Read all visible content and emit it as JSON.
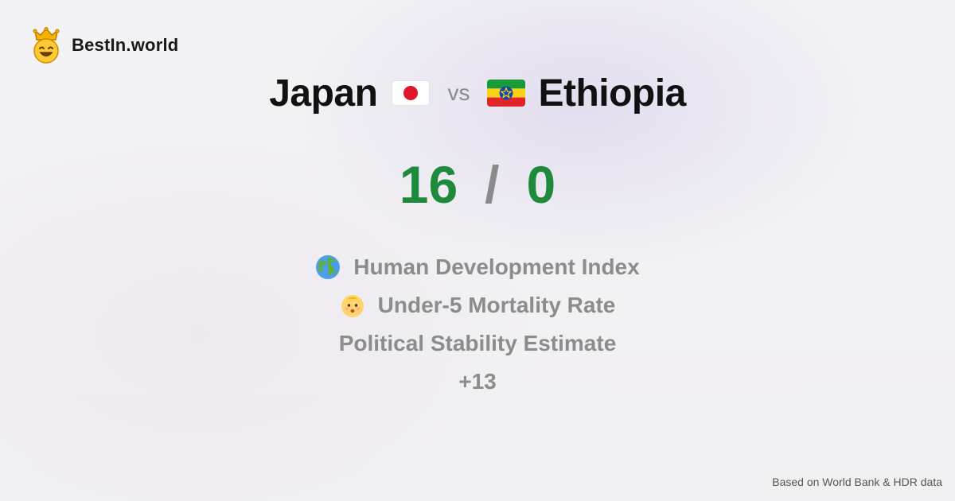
{
  "brand": {
    "name": "BestIn.world",
    "logo_icon": "crowned-smiley-icon"
  },
  "comparison": {
    "country_a": "Japan",
    "country_b": "Ethiopia",
    "vs_label": "vs",
    "flag_a_icon": "japan-flag-icon",
    "flag_b_icon": "ethiopia-flag-icon"
  },
  "score": {
    "a": "16",
    "separator": "/",
    "b": "0",
    "color": "#1e8a3c"
  },
  "metrics": [
    {
      "label": "Human Development Index",
      "icon": "globe-icon"
    },
    {
      "label": "Under-5 Mortality Rate",
      "icon": "baby-face-icon"
    },
    {
      "label": "Political Stability Estimate",
      "icon": ""
    },
    {
      "label": "+13",
      "icon": ""
    }
  ],
  "footer": {
    "source": "Based on World Bank & HDR data"
  }
}
